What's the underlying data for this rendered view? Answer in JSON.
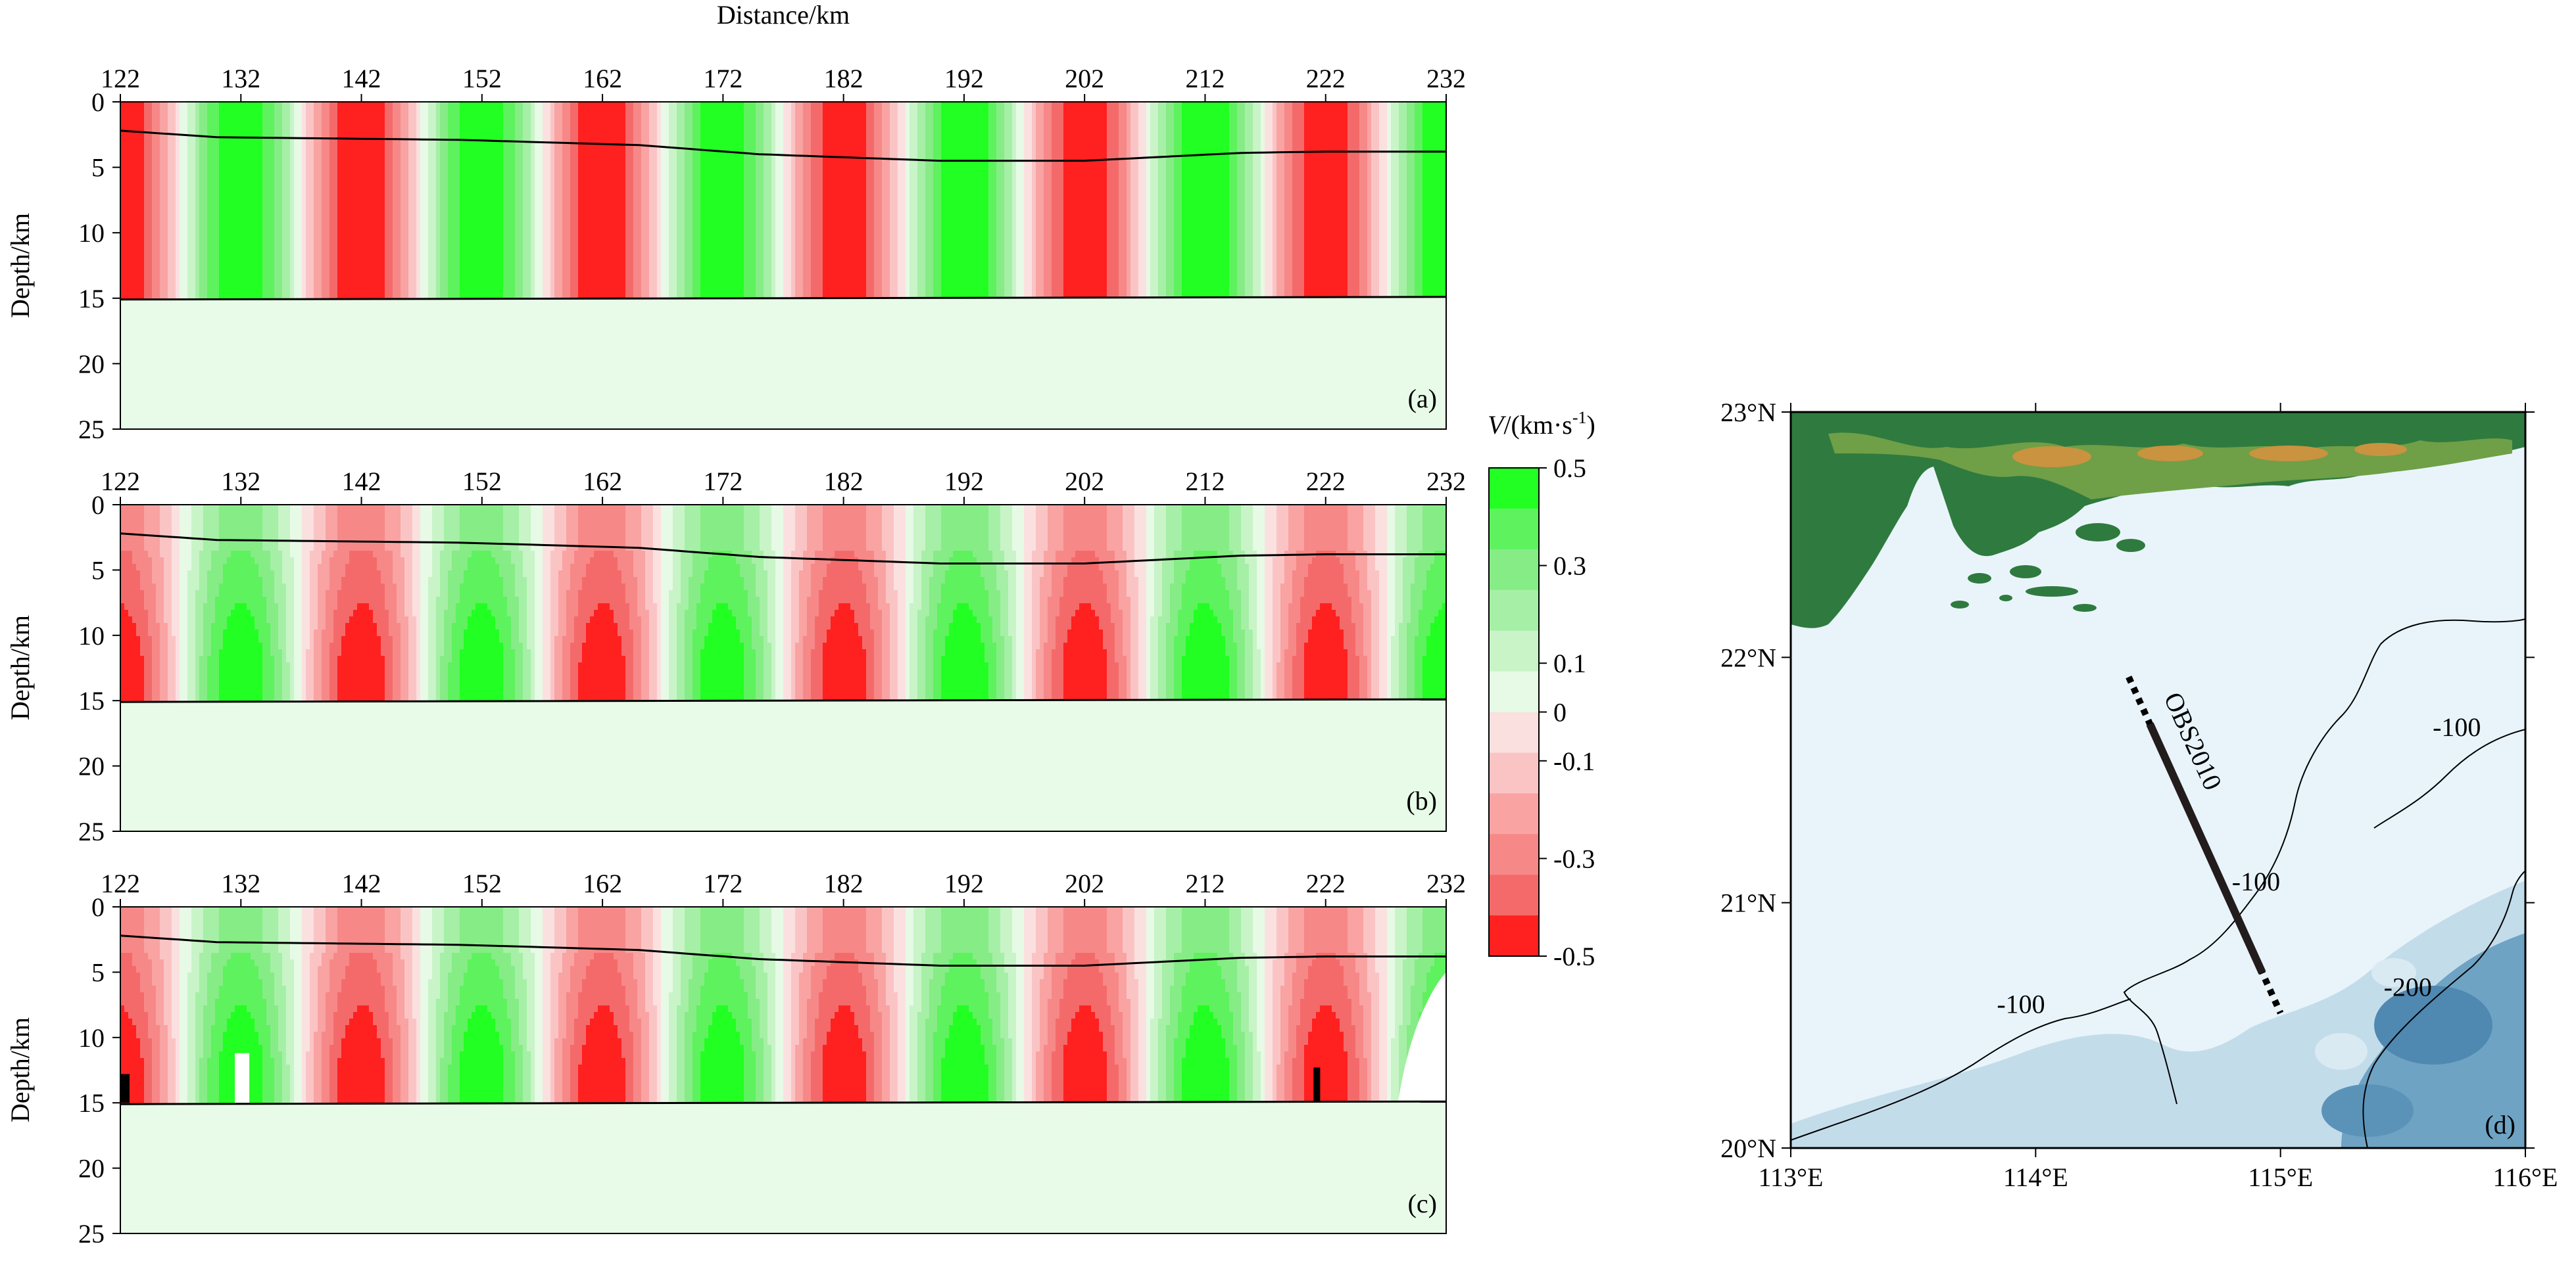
{
  "figure": {
    "colors": {
      "green_scale": [
        "#e6fae6",
        "#c8f4c8",
        "#a6efa6",
        "#86ec86",
        "#5ef25e",
        "#22ff22"
      ],
      "red_scale": [
        "#fbe0e0",
        "#fbc4c4",
        "#f9a3a3",
        "#f78888",
        "#f46a6a",
        "#ff2020"
      ],
      "layer_fill": "#e8fae8",
      "sea_light": "#e8f4fa",
      "sea_mid": "#b7d6e6",
      "sea_deep": "#5b93b8",
      "land_low": "#2f7a3f",
      "land_mid": "#79a64a",
      "land_high": "#c9933f"
    }
  },
  "chart_data": [
    {
      "panel_label": "(a)",
      "type": "heatmap",
      "xlabel": "Distance/km",
      "ylabel": "Depth/km",
      "xticks": [
        "122",
        "132",
        "142",
        "152",
        "162",
        "172",
        "182",
        "192",
        "202",
        "212",
        "222",
        "232"
      ],
      "yticks": [
        "0",
        "5",
        "10",
        "15",
        "20",
        "25"
      ],
      "xlim": [
        122,
        232
      ],
      "ylim": [
        0,
        25
      ],
      "pattern_period_km": 20,
      "peak_amplitude": 0.15,
      "top_boundary": {
        "x": [
          122,
          130,
          150,
          165,
          175,
          190,
          202,
          215,
          222,
          232
        ],
        "depth": [
          2.2,
          2.7,
          2.9,
          3.3,
          4.0,
          4.5,
          4.5,
          3.9,
          3.8,
          3.8
        ]
      },
      "bottom_boundary": {
        "x": [
          122,
          232
        ],
        "depth": [
          15.1,
          14.9
        ]
      }
    },
    {
      "panel_label": "(b)",
      "type": "heatmap",
      "xlabel": "",
      "ylabel": "Depth/km",
      "xticks": [
        "122",
        "132",
        "142",
        "152",
        "162",
        "172",
        "182",
        "192",
        "202",
        "212",
        "222",
        "232"
      ],
      "yticks": [
        "0",
        "5",
        "10",
        "15",
        "20",
        "25"
      ],
      "xlim": [
        122,
        232
      ],
      "ylim": [
        0,
        25
      ],
      "pattern_period_km": 20,
      "peak_amplitude": 0.25,
      "top_boundary": {
        "x": [
          122,
          130,
          150,
          165,
          175,
          190,
          202,
          215,
          222,
          232
        ],
        "depth": [
          2.2,
          2.7,
          2.9,
          3.3,
          4.0,
          4.5,
          4.5,
          3.9,
          3.8,
          3.8
        ]
      },
      "bottom_boundary": {
        "x": [
          122,
          232
        ],
        "depth": [
          15.1,
          14.9
        ]
      }
    },
    {
      "panel_label": "(c)",
      "type": "heatmap",
      "xlabel": "",
      "ylabel": "Depth/km",
      "xticks": [
        "122",
        "132",
        "142",
        "152",
        "162",
        "172",
        "182",
        "192",
        "202",
        "212",
        "222",
        "232"
      ],
      "yticks": [
        "0",
        "5",
        "10",
        "15",
        "20",
        "25"
      ],
      "xlim": [
        122,
        232
      ],
      "ylim": [
        0,
        25
      ],
      "pattern_period_km": 20,
      "peak_amplitude": 0.5,
      "top_boundary": {
        "x": [
          122,
          130,
          150,
          165,
          175,
          190,
          202,
          215,
          222,
          232
        ],
        "depth": [
          2.2,
          2.7,
          2.9,
          3.3,
          4.0,
          4.5,
          4.5,
          3.9,
          3.8,
          3.8
        ]
      },
      "bottom_boundary": {
        "x": [
          122,
          232
        ],
        "depth": [
          15.1,
          14.9
        ]
      }
    },
    {
      "type": "colorbar",
      "title_italic": "V",
      "title_rest": "/(km·s",
      "title_sup": "-1",
      "title_close": ")",
      "ticks": [
        "0.5",
        "0.3",
        "0.1",
        "0",
        "-0.1",
        "-0.3",
        "-0.5"
      ],
      "tick_values": [
        0.5,
        0.3,
        0.1,
        0,
        -0.1,
        -0.3,
        -0.5
      ],
      "range": [
        -0.5,
        0.5
      ]
    },
    {
      "panel_label": "(d)",
      "type": "map",
      "lon_ticks": [
        "113°E",
        "114°E",
        "115°E",
        "116°E"
      ],
      "lat_ticks": [
        "23°N",
        "22°N",
        "21°N",
        "20°N"
      ],
      "lon_range": [
        113,
        116
      ],
      "lat_range": [
        20,
        23
      ],
      "profile_label": "OBS2010",
      "profile": {
        "start": {
          "lon": 114.38,
          "lat": 21.92
        },
        "end": {
          "lon": 115.0,
          "lat": 20.55
        }
      },
      "contour_labels": [
        {
          "text": "-100",
          "lon": 115.72,
          "lat": 21.68
        },
        {
          "text": "-100",
          "lon": 114.9,
          "lat": 21.05
        },
        {
          "text": "-100",
          "lon": 113.94,
          "lat": 20.55
        },
        {
          "text": "-200",
          "lon": 115.52,
          "lat": 20.62
        }
      ]
    }
  ]
}
